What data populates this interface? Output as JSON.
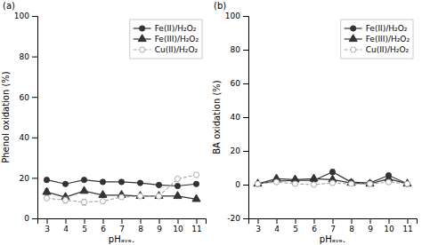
{
  "chart_data": [
    {
      "type": "line",
      "title": "(a)",
      "x_label": "pHₐᵥₑ.",
      "y_label": "Phenol oxidation (%)",
      "x": [
        3,
        4,
        5,
        6,
        7,
        8,
        9,
        10,
        11
      ],
      "xlim": [
        2.5,
        11.5
      ],
      "xticks": [
        3,
        4,
        5,
        6,
        7,
        8,
        9,
        10,
        11
      ],
      "ylim": [
        0,
        100
      ],
      "yticks": [
        0,
        20,
        40,
        60,
        80,
        100
      ],
      "grid": false,
      "legend": "upper right",
      "series": [
        {
          "name": "Fe(II)/H₂O₂",
          "color": "#333333",
          "marker": "circle",
          "line_style": "solid",
          "values": [
            19.0,
            17.0,
            19.0,
            18.0,
            18.0,
            17.5,
            16.5,
            16.0,
            17.0
          ],
          "errors": [
            1.0,
            0.8,
            0.8,
            0.8,
            0.8,
            0.8,
            0.8,
            0.8,
            0.8
          ]
        },
        {
          "name": "Fe(III)/H₂O₂",
          "color": "#333333",
          "marker": "triangle",
          "line_style": "solid",
          "values": [
            13.0,
            10.5,
            13.5,
            11.5,
            11.5,
            11.0,
            11.0,
            11.0,
            9.5
          ],
          "errors": [
            1.5,
            0.8,
            0.8,
            0.8,
            0.8,
            0.8,
            0.8,
            0.8,
            0.8
          ]
        },
        {
          "name": "Cu(II)/H₂O₂",
          "color": "#aaaaaa",
          "marker": "open-circle",
          "line_style": "dashed",
          "values": [
            10.0,
            9.0,
            8.0,
            8.5,
            10.5,
            11.0,
            11.0,
            19.5,
            21.5
          ],
          "errors": [
            0.8,
            1.5,
            1.5,
            0.8,
            0.8,
            0.8,
            0.8,
            0.8,
            0.8
          ]
        }
      ]
    },
    {
      "type": "line",
      "title": "(b)",
      "x_label": "pHₐᵥₑ.",
      "y_label": "BA oxidation (%)",
      "x": [
        3,
        4,
        5,
        6,
        7,
        8,
        9,
        10,
        11
      ],
      "xlim": [
        2.5,
        11.5
      ],
      "xticks": [
        3,
        4,
        5,
        6,
        7,
        8,
        9,
        10,
        11
      ],
      "ylim": [
        -20,
        100
      ],
      "yticks": [
        -20,
        0,
        20,
        40,
        60,
        80,
        100
      ],
      "grid": false,
      "legend": "upper right",
      "series": [
        {
          "name": "Fe(II)/H₂O₂",
          "color": "#333333",
          "marker": "circle",
          "line_style": "solid",
          "values": [
            0.5,
            2.0,
            2.5,
            2.5,
            7.5,
            1.5,
            1.0,
            5.5,
            0.5
          ],
          "errors": [
            0.5,
            0.5,
            0.8,
            0.8,
            1.5,
            0.8,
            0.5,
            1.0,
            0.5
          ]
        },
        {
          "name": "Fe(III)/H₂O₂",
          "color": "#333333",
          "marker": "triangle",
          "line_style": "solid",
          "values": [
            0.5,
            3.5,
            3.0,
            3.5,
            3.0,
            1.0,
            0.5,
            3.5,
            0.5
          ],
          "errors": [
            0.5,
            1.0,
            1.0,
            1.0,
            1.0,
            0.5,
            0.5,
            1.0,
            0.5
          ]
        },
        {
          "name": "Cu(II)/H₂O₂",
          "color": "#aaaaaa",
          "marker": "open-circle",
          "line_style": "dashed",
          "values": [
            0.5,
            1.5,
            0.5,
            0.0,
            1.0,
            0.5,
            0.5,
            1.5,
            0.5
          ],
          "errors": [
            0.3,
            0.5,
            0.5,
            0.3,
            0.5,
            0.3,
            0.3,
            0.5,
            0.3
          ]
        }
      ]
    }
  ]
}
